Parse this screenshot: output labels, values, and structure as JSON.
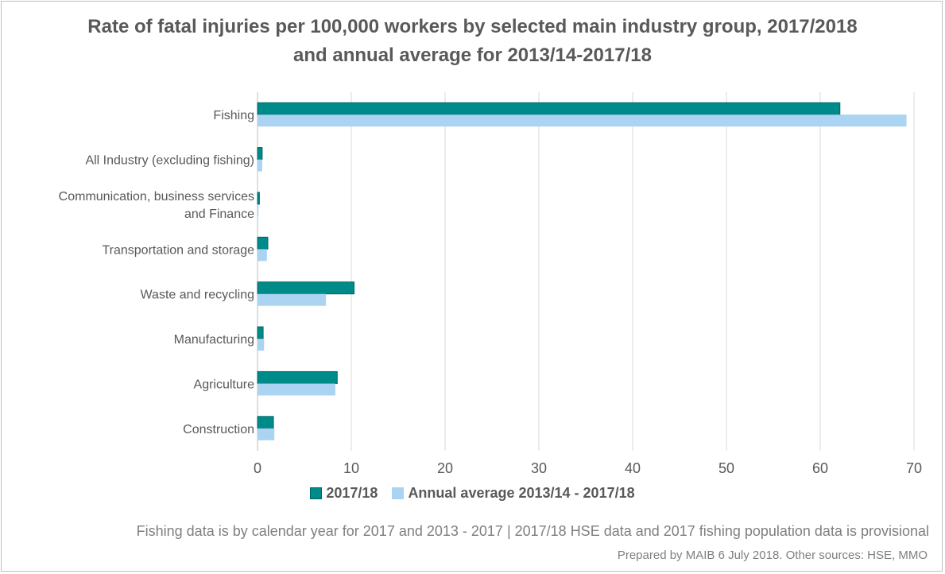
{
  "chart_data": {
    "type": "bar",
    "orientation": "horizontal",
    "title_line_1": "Rate of fatal injuries per 100,000 workers by selected main industry group, 2017/2018",
    "title_line_2": "and annual average for 2013/14-2017/18",
    "categories": [
      [
        "Fishing"
      ],
      [
        "All Industry (excluding fishing)"
      ],
      [
        "Communication, business services",
        "and Finance"
      ],
      [
        "Transportation and storage"
      ],
      [
        "Waste and recycling"
      ],
      [
        "Manufacturing"
      ],
      [
        "Agriculture"
      ],
      [
        "Construction"
      ]
    ],
    "series": [
      {
        "name": "2017/18",
        "color": "#008b8b",
        "values": [
          62.1,
          0.5,
          0.2,
          1.1,
          10.3,
          0.6,
          8.5,
          1.7
        ]
      },
      {
        "name": "Annual average 2013/14 - 2017/18",
        "color": "#abd3f2",
        "values": [
          69.2,
          0.5,
          0.1,
          1.0,
          7.3,
          0.7,
          8.3,
          1.8
        ]
      }
    ],
    "x_ticks": [
      "0",
      "10",
      "20",
      "30",
      "40",
      "50",
      "60",
      "70"
    ],
    "xlim": [
      0,
      70
    ],
    "grid": true,
    "legend_position": "bottom"
  },
  "footnotes": {
    "line_1": "Fishing data is by calendar year for 2017 and 2013 - 2017 | 2017/18 HSE data and 2017 fishing population data is provisional",
    "line_2": "Prepared by MAIB 6 July 2018. Other sources: HSE, MMO"
  }
}
